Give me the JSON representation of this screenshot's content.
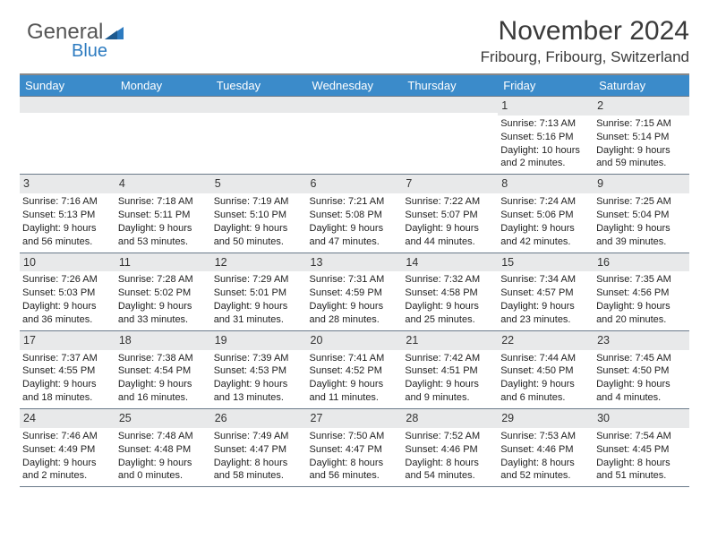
{
  "logo": {
    "text1": "General",
    "text2": "Blue"
  },
  "title": "November 2024",
  "location": "Fribourg, Fribourg, Switzerland",
  "colors": {
    "header_bg": "#3b8bca",
    "header_text": "#ffffff",
    "daynum_bg": "#e8e9ea",
    "border": "#6a7a8a",
    "logo_accent": "#2d7bc0",
    "body_text": "#333333",
    "page_bg": "#ffffff"
  },
  "weekdays": [
    "Sunday",
    "Monday",
    "Tuesday",
    "Wednesday",
    "Thursday",
    "Friday",
    "Saturday"
  ],
  "weeks": [
    [
      {
        "day": "",
        "sunrise": "",
        "sunset": "",
        "daylight": ""
      },
      {
        "day": "",
        "sunrise": "",
        "sunset": "",
        "daylight": ""
      },
      {
        "day": "",
        "sunrise": "",
        "sunset": "",
        "daylight": ""
      },
      {
        "day": "",
        "sunrise": "",
        "sunset": "",
        "daylight": ""
      },
      {
        "day": "",
        "sunrise": "",
        "sunset": "",
        "daylight": ""
      },
      {
        "day": "1",
        "sunrise": "Sunrise: 7:13 AM",
        "sunset": "Sunset: 5:16 PM",
        "daylight": "Daylight: 10 hours and 2 minutes."
      },
      {
        "day": "2",
        "sunrise": "Sunrise: 7:15 AM",
        "sunset": "Sunset: 5:14 PM",
        "daylight": "Daylight: 9 hours and 59 minutes."
      }
    ],
    [
      {
        "day": "3",
        "sunrise": "Sunrise: 7:16 AM",
        "sunset": "Sunset: 5:13 PM",
        "daylight": "Daylight: 9 hours and 56 minutes."
      },
      {
        "day": "4",
        "sunrise": "Sunrise: 7:18 AM",
        "sunset": "Sunset: 5:11 PM",
        "daylight": "Daylight: 9 hours and 53 minutes."
      },
      {
        "day": "5",
        "sunrise": "Sunrise: 7:19 AM",
        "sunset": "Sunset: 5:10 PM",
        "daylight": "Daylight: 9 hours and 50 minutes."
      },
      {
        "day": "6",
        "sunrise": "Sunrise: 7:21 AM",
        "sunset": "Sunset: 5:08 PM",
        "daylight": "Daylight: 9 hours and 47 minutes."
      },
      {
        "day": "7",
        "sunrise": "Sunrise: 7:22 AM",
        "sunset": "Sunset: 5:07 PM",
        "daylight": "Daylight: 9 hours and 44 minutes."
      },
      {
        "day": "8",
        "sunrise": "Sunrise: 7:24 AM",
        "sunset": "Sunset: 5:06 PM",
        "daylight": "Daylight: 9 hours and 42 minutes."
      },
      {
        "day": "9",
        "sunrise": "Sunrise: 7:25 AM",
        "sunset": "Sunset: 5:04 PM",
        "daylight": "Daylight: 9 hours and 39 minutes."
      }
    ],
    [
      {
        "day": "10",
        "sunrise": "Sunrise: 7:26 AM",
        "sunset": "Sunset: 5:03 PM",
        "daylight": "Daylight: 9 hours and 36 minutes."
      },
      {
        "day": "11",
        "sunrise": "Sunrise: 7:28 AM",
        "sunset": "Sunset: 5:02 PM",
        "daylight": "Daylight: 9 hours and 33 minutes."
      },
      {
        "day": "12",
        "sunrise": "Sunrise: 7:29 AM",
        "sunset": "Sunset: 5:01 PM",
        "daylight": "Daylight: 9 hours and 31 minutes."
      },
      {
        "day": "13",
        "sunrise": "Sunrise: 7:31 AM",
        "sunset": "Sunset: 4:59 PM",
        "daylight": "Daylight: 9 hours and 28 minutes."
      },
      {
        "day": "14",
        "sunrise": "Sunrise: 7:32 AM",
        "sunset": "Sunset: 4:58 PM",
        "daylight": "Daylight: 9 hours and 25 minutes."
      },
      {
        "day": "15",
        "sunrise": "Sunrise: 7:34 AM",
        "sunset": "Sunset: 4:57 PM",
        "daylight": "Daylight: 9 hours and 23 minutes."
      },
      {
        "day": "16",
        "sunrise": "Sunrise: 7:35 AM",
        "sunset": "Sunset: 4:56 PM",
        "daylight": "Daylight: 9 hours and 20 minutes."
      }
    ],
    [
      {
        "day": "17",
        "sunrise": "Sunrise: 7:37 AM",
        "sunset": "Sunset: 4:55 PM",
        "daylight": "Daylight: 9 hours and 18 minutes."
      },
      {
        "day": "18",
        "sunrise": "Sunrise: 7:38 AM",
        "sunset": "Sunset: 4:54 PM",
        "daylight": "Daylight: 9 hours and 16 minutes."
      },
      {
        "day": "19",
        "sunrise": "Sunrise: 7:39 AM",
        "sunset": "Sunset: 4:53 PM",
        "daylight": "Daylight: 9 hours and 13 minutes."
      },
      {
        "day": "20",
        "sunrise": "Sunrise: 7:41 AM",
        "sunset": "Sunset: 4:52 PM",
        "daylight": "Daylight: 9 hours and 11 minutes."
      },
      {
        "day": "21",
        "sunrise": "Sunrise: 7:42 AM",
        "sunset": "Sunset: 4:51 PM",
        "daylight": "Daylight: 9 hours and 9 minutes."
      },
      {
        "day": "22",
        "sunrise": "Sunrise: 7:44 AM",
        "sunset": "Sunset: 4:50 PM",
        "daylight": "Daylight: 9 hours and 6 minutes."
      },
      {
        "day": "23",
        "sunrise": "Sunrise: 7:45 AM",
        "sunset": "Sunset: 4:50 PM",
        "daylight": "Daylight: 9 hours and 4 minutes."
      }
    ],
    [
      {
        "day": "24",
        "sunrise": "Sunrise: 7:46 AM",
        "sunset": "Sunset: 4:49 PM",
        "daylight": "Daylight: 9 hours and 2 minutes."
      },
      {
        "day": "25",
        "sunrise": "Sunrise: 7:48 AM",
        "sunset": "Sunset: 4:48 PM",
        "daylight": "Daylight: 9 hours and 0 minutes."
      },
      {
        "day": "26",
        "sunrise": "Sunrise: 7:49 AM",
        "sunset": "Sunset: 4:47 PM",
        "daylight": "Daylight: 8 hours and 58 minutes."
      },
      {
        "day": "27",
        "sunrise": "Sunrise: 7:50 AM",
        "sunset": "Sunset: 4:47 PM",
        "daylight": "Daylight: 8 hours and 56 minutes."
      },
      {
        "day": "28",
        "sunrise": "Sunrise: 7:52 AM",
        "sunset": "Sunset: 4:46 PM",
        "daylight": "Daylight: 8 hours and 54 minutes."
      },
      {
        "day": "29",
        "sunrise": "Sunrise: 7:53 AM",
        "sunset": "Sunset: 4:46 PM",
        "daylight": "Daylight: 8 hours and 52 minutes."
      },
      {
        "day": "30",
        "sunrise": "Sunrise: 7:54 AM",
        "sunset": "Sunset: 4:45 PM",
        "daylight": "Daylight: 8 hours and 51 minutes."
      }
    ]
  ]
}
